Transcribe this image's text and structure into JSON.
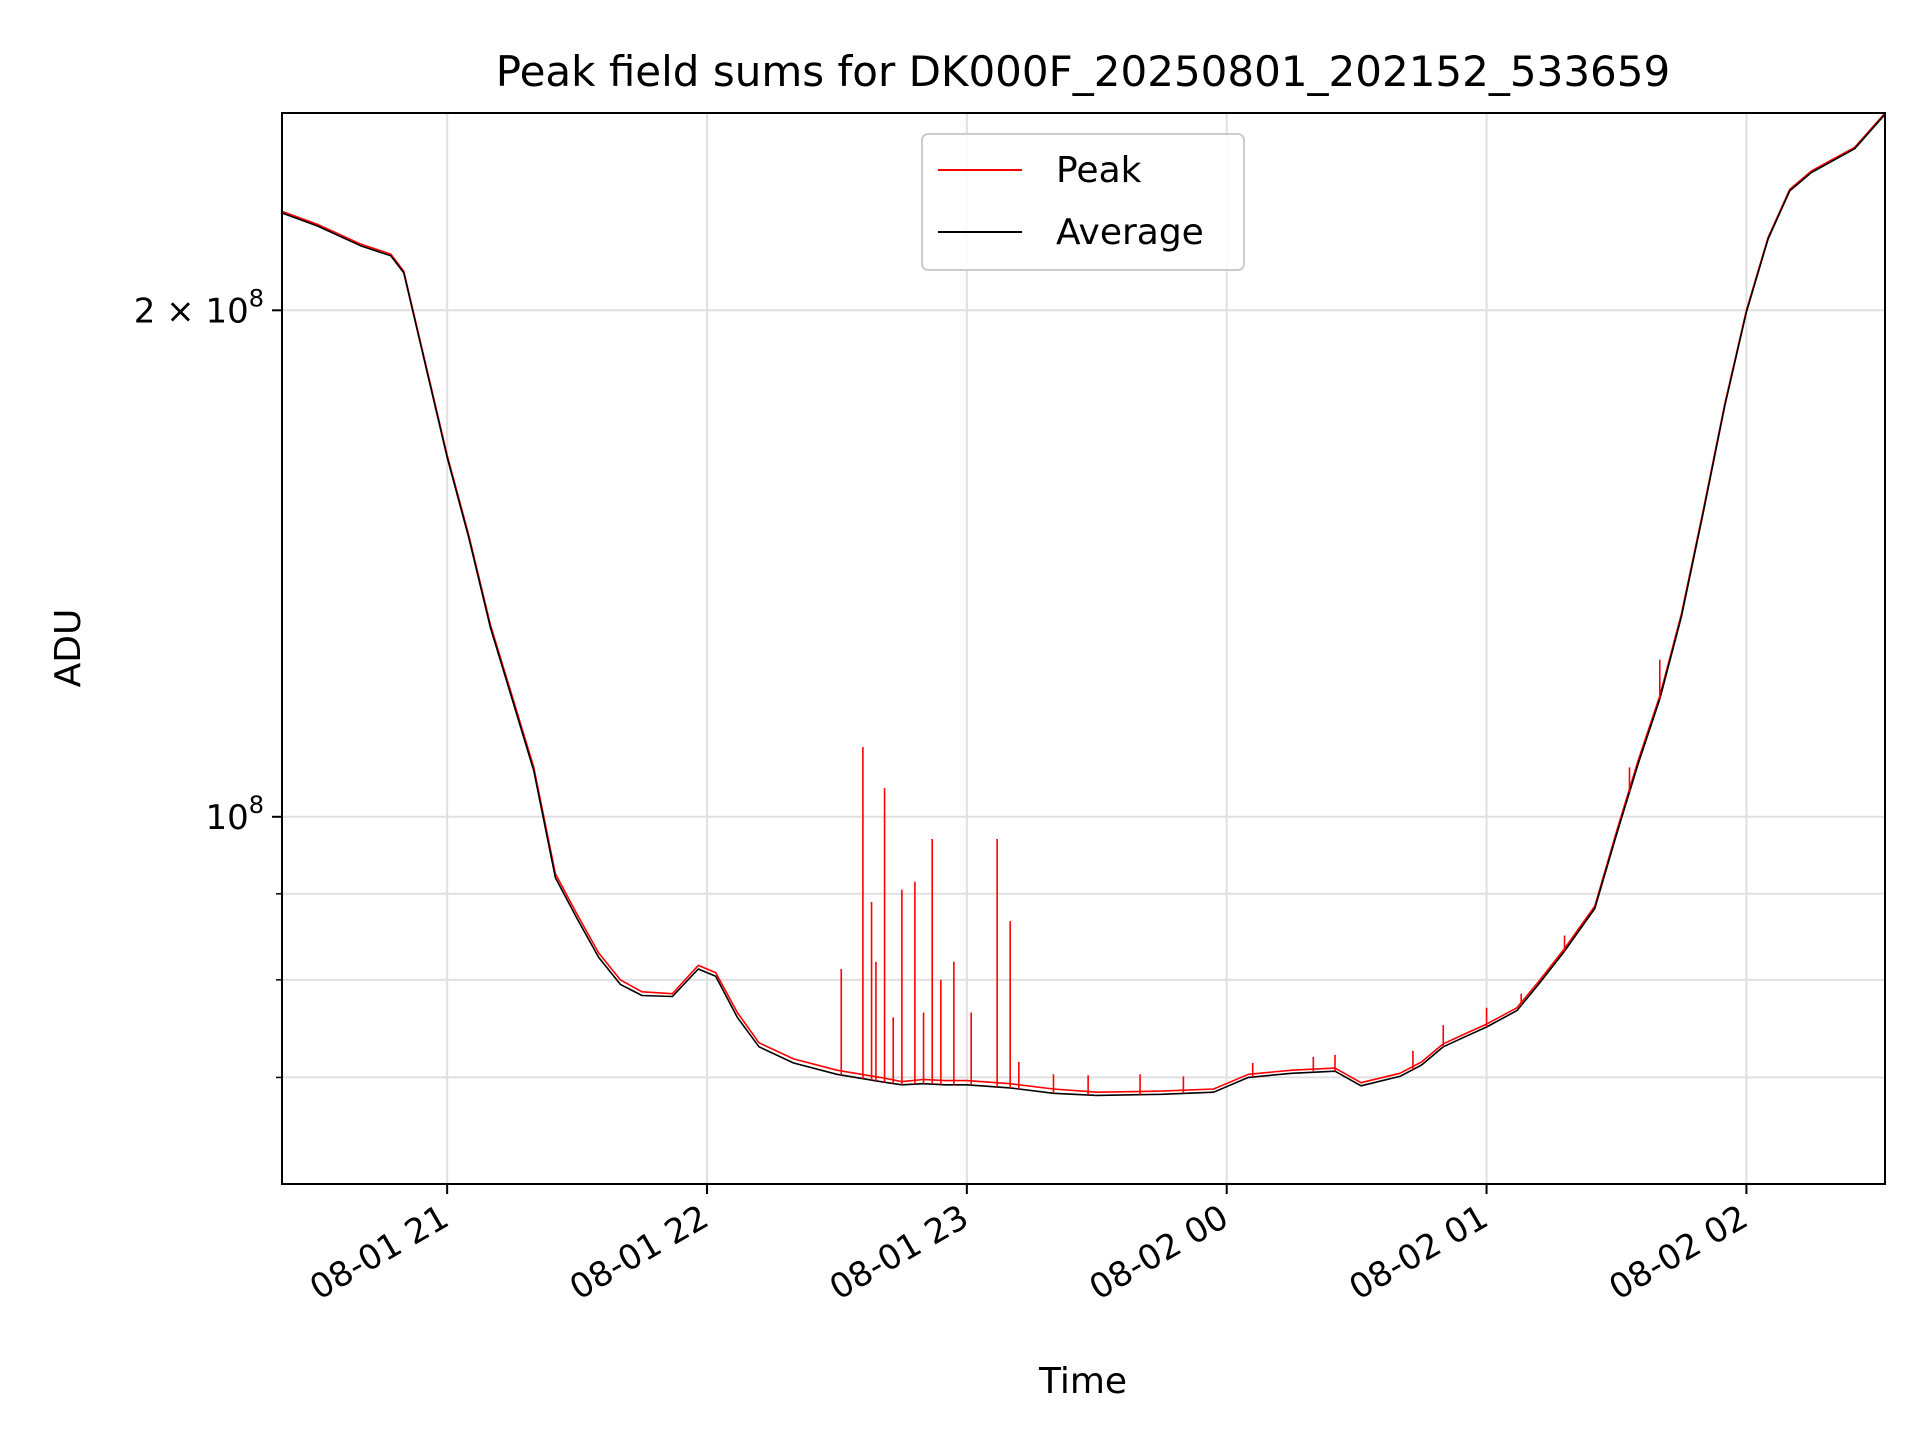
{
  "chart_data": {
    "type": "line",
    "title": "Peak field sums for DK000F_20250801_202152_533659",
    "xlabel": "Time",
    "ylabel": "ADU",
    "y_scale": "log",
    "xlim": [
      "2025-08-01 20:21:52",
      "2025-08-02 02:32:00"
    ],
    "ylim": [
      60500000,
      262000000
    ],
    "grid": true,
    "legend_position": "upper center",
    "x_ticks": [
      {
        "t": "2025-08-01 21:00",
        "label": "08-01 21"
      },
      {
        "t": "2025-08-01 22:00",
        "label": "08-01 22"
      },
      {
        "t": "2025-08-01 23:00",
        "label": "08-01 23"
      },
      {
        "t": "2025-08-02 00:00",
        "label": "08-02 00"
      },
      {
        "t": "2025-08-02 01:00",
        "label": "08-02 01"
      },
      {
        "t": "2025-08-02 02:00",
        "label": "08-02 02"
      }
    ],
    "y_ticks": [
      {
        "value": 100000000,
        "label": "10",
        "exp": "8"
      },
      {
        "value": 200000000,
        "label": "2 × 10",
        "exp": "8"
      }
    ],
    "series": [
      {
        "name": "Peak",
        "color": "#ff0000",
        "points": [
          [
            "2025-08-01 20:21:52",
            229000000
          ],
          [
            "2025-08-01 20:30",
            225000000
          ],
          [
            "2025-08-01 20:40",
            219000000
          ],
          [
            "2025-08-01 20:47",
            216000000
          ],
          [
            "2025-08-01 20:50",
            211000000
          ],
          [
            "2025-08-01 20:55",
            186000000
          ],
          [
            "2025-08-01 21:00",
            164000000
          ],
          [
            "2025-08-01 21:05",
            147000000
          ],
          [
            "2025-08-01 21:10",
            130000000
          ],
          [
            "2025-08-01 21:15",
            118000000
          ],
          [
            "2025-08-01 21:20",
            107000000
          ],
          [
            "2025-08-01 21:25",
            92500000
          ],
          [
            "2025-08-01 21:30",
            87500000
          ],
          [
            "2025-08-01 21:35",
            83000000
          ],
          [
            "2025-08-01 21:40",
            80000000
          ],
          [
            "2025-08-01 21:45",
            78700000
          ],
          [
            "2025-08-01 21:52",
            78500000
          ],
          [
            "2025-08-01 21:58",
            81600000
          ],
          [
            "2025-08-01 22:02",
            80800000
          ],
          [
            "2025-08-01 22:07",
            76500000
          ],
          [
            "2025-08-01 22:12",
            73400000
          ],
          [
            "2025-08-01 22:20",
            71800000
          ],
          [
            "2025-08-01 22:30",
            70700000
          ],
          [
            "2025-08-01 22:40",
            70000000
          ],
          [
            "2025-08-01 22:45",
            69600000
          ],
          [
            "2025-08-01 22:50",
            69800000
          ],
          [
            "2025-08-01 22:55",
            69700000
          ],
          [
            "2025-08-01 23:00",
            69700000
          ],
          [
            "2025-08-01 23:10",
            69400000
          ],
          [
            "2025-08-01 23:20",
            68900000
          ],
          [
            "2025-08-01 23:30",
            68600000
          ],
          [
            "2025-08-01 23:45",
            68700000
          ],
          [
            "2025-08-01 23:57",
            68900000
          ],
          [
            "2025-08-02 00:05",
            70300000
          ],
          [
            "2025-08-02 00:15",
            70700000
          ],
          [
            "2025-08-02 00:25",
            70900000
          ],
          [
            "2025-08-02 00:31",
            69500000
          ],
          [
            "2025-08-02 00:40",
            70400000
          ],
          [
            "2025-08-02 00:45",
            71500000
          ],
          [
            "2025-08-02 00:50",
            73300000
          ],
          [
            "2025-08-02 00:55",
            74300000
          ],
          [
            "2025-08-02 01:00",
            75300000
          ],
          [
            "2025-08-02 01:07",
            77000000
          ],
          [
            "2025-08-02 01:12",
            79800000
          ],
          [
            "2025-08-02 01:18",
            83500000
          ],
          [
            "2025-08-02 01:25",
            88500000
          ],
          [
            "2025-08-02 01:30",
            98000000
          ],
          [
            "2025-08-02 01:35",
            108000000
          ],
          [
            "2025-08-02 01:40",
            118000000
          ],
          [
            "2025-08-02 01:45",
            132000000
          ],
          [
            "2025-08-02 01:50",
            152000000
          ],
          [
            "2025-08-02 01:55",
            176000000
          ],
          [
            "2025-08-02 02:00",
            200000000
          ],
          [
            "2025-08-02 02:05",
            221000000
          ],
          [
            "2025-08-02 02:10",
            236000000
          ],
          [
            "2025-08-02 02:15",
            242000000
          ],
          [
            "2025-08-02 02:25",
            250000000
          ],
          [
            "2025-08-02 02:32",
            262000000
          ]
        ],
        "spikes": [
          [
            "2025-08-01 22:31",
            81200000
          ],
          [
            "2025-08-01 22:36",
            110000000
          ],
          [
            "2025-08-01 22:38",
            89000000
          ],
          [
            "2025-08-01 22:39",
            82000000
          ],
          [
            "2025-08-01 22:41",
            104000000
          ],
          [
            "2025-08-01 22:43",
            76000000
          ],
          [
            "2025-08-01 22:45",
            90500000
          ],
          [
            "2025-08-01 22:48",
            91500000
          ],
          [
            "2025-08-01 22:50",
            76500000
          ],
          [
            "2025-08-01 22:52",
            97000000
          ],
          [
            "2025-08-01 22:54",
            80000000
          ],
          [
            "2025-08-01 22:57",
            82000000
          ],
          [
            "2025-08-01 23:01",
            76500000
          ],
          [
            "2025-08-01 23:07",
            97000000
          ],
          [
            "2025-08-01 23:10",
            86700000
          ],
          [
            "2025-08-01 23:12",
            71500000
          ],
          [
            "2025-08-01 23:20",
            70300000
          ],
          [
            "2025-08-01 23:28",
            70200000
          ],
          [
            "2025-08-01 23:40",
            70300000
          ],
          [
            "2025-08-01 23:50",
            70100000
          ],
          [
            "2025-08-02 00:06",
            71400000
          ],
          [
            "2025-08-02 00:20",
            72000000
          ],
          [
            "2025-08-02 00:25",
            72200000
          ],
          [
            "2025-08-02 00:43",
            72600000
          ],
          [
            "2025-08-02 00:50",
            75200000
          ],
          [
            "2025-08-02 01:00",
            77000000
          ],
          [
            "2025-08-02 01:08",
            78500000
          ],
          [
            "2025-08-02 01:18",
            85000000
          ],
          [
            "2025-08-02 01:33",
            107000000
          ],
          [
            "2025-08-02 01:40",
            124000000
          ]
        ]
      },
      {
        "name": "Average",
        "color": "#000000",
        "points": [
          [
            "2025-08-01 20:21:52",
            228500000
          ],
          [
            "2025-08-01 20:30",
            224500000
          ],
          [
            "2025-08-01 20:40",
            218500000
          ],
          [
            "2025-08-01 20:47",
            215500000
          ],
          [
            "2025-08-01 20:50",
            210500000
          ],
          [
            "2025-08-01 20:55",
            185500000
          ],
          [
            "2025-08-01 21:00",
            163500000
          ],
          [
            "2025-08-01 21:05",
            146500000
          ],
          [
            "2025-08-01 21:10",
            129500000
          ],
          [
            "2025-08-01 21:15",
            117500000
          ],
          [
            "2025-08-01 21:20",
            106500000
          ],
          [
            "2025-08-01 21:25",
            92000000
          ],
          [
            "2025-08-01 21:30",
            87000000
          ],
          [
            "2025-08-01 21:35",
            82500000
          ],
          [
            "2025-08-01 21:40",
            79500000
          ],
          [
            "2025-08-01 21:45",
            78300000
          ],
          [
            "2025-08-01 21:52",
            78200000
          ],
          [
            "2025-08-01 21:58",
            81200000
          ],
          [
            "2025-08-01 22:02",
            80400000
          ],
          [
            "2025-08-01 22:07",
            76000000
          ],
          [
            "2025-08-01 22:12",
            73000000
          ],
          [
            "2025-08-01 22:20",
            71400000
          ],
          [
            "2025-08-01 22:30",
            70300000
          ],
          [
            "2025-08-01 22:40",
            69600000
          ],
          [
            "2025-08-01 22:45",
            69300000
          ],
          [
            "2025-08-01 22:50",
            69400000
          ],
          [
            "2025-08-01 22:55",
            69300000
          ],
          [
            "2025-08-01 23:00",
            69300000
          ],
          [
            "2025-08-01 23:10",
            69000000
          ],
          [
            "2025-08-01 23:20",
            68500000
          ],
          [
            "2025-08-01 23:30",
            68300000
          ],
          [
            "2025-08-01 23:45",
            68400000
          ],
          [
            "2025-08-01 23:57",
            68600000
          ],
          [
            "2025-08-02 00:05",
            70000000
          ],
          [
            "2025-08-02 00:15",
            70400000
          ],
          [
            "2025-08-02 00:25",
            70600000
          ],
          [
            "2025-08-02 00:31",
            69200000
          ],
          [
            "2025-08-02 00:40",
            70100000
          ],
          [
            "2025-08-02 00:45",
            71200000
          ],
          [
            "2025-08-02 00:50",
            73000000
          ],
          [
            "2025-08-02 00:55",
            74000000
          ],
          [
            "2025-08-02 01:00",
            75000000
          ],
          [
            "2025-08-02 01:07",
            76700000
          ],
          [
            "2025-08-02 01:12",
            79500000
          ],
          [
            "2025-08-02 01:18",
            83200000
          ],
          [
            "2025-08-02 01:25",
            88200000
          ],
          [
            "2025-08-02 01:30",
            97600000
          ],
          [
            "2025-08-02 01:35",
            107500000
          ],
          [
            "2025-08-02 01:40",
            117500000
          ],
          [
            "2025-08-02 01:45",
            131500000
          ],
          [
            "2025-08-02 01:50",
            151500000
          ],
          [
            "2025-08-02 01:55",
            175500000
          ],
          [
            "2025-08-02 02:00",
            199500000
          ],
          [
            "2025-08-02 02:05",
            220500000
          ],
          [
            "2025-08-02 02:10",
            235500000
          ],
          [
            "2025-08-02 02:15",
            241500000
          ],
          [
            "2025-08-02 02:25",
            249500000
          ],
          [
            "2025-08-02 02:32",
            261500000
          ]
        ]
      }
    ]
  }
}
